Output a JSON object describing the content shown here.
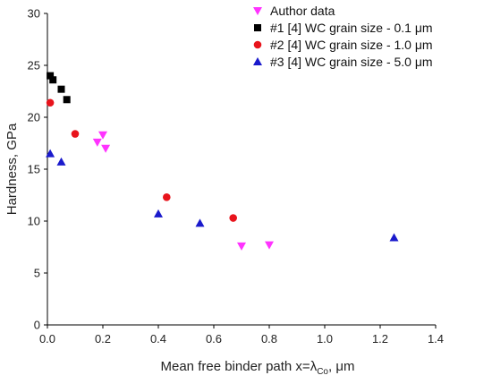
{
  "chart_data": {
    "type": "scatter",
    "title": "",
    "xlabel": {
      "prefix": "Mean free binder path x=λ",
      "sub": "Co",
      "suffix": ", μm"
    },
    "ylabel": "Hardness, GPa",
    "xlim": [
      0,
      1.4
    ],
    "ylim": [
      0,
      30
    ],
    "xticks": [
      0.0,
      0.2,
      0.4,
      0.6,
      0.8,
      1.0,
      1.2,
      1.4
    ],
    "xtick_labels": [
      "0.0",
      "0.2",
      "0.4",
      "0.6",
      "0.8",
      "1.0",
      "1.2",
      "1.4"
    ],
    "yticks": [
      0,
      5,
      10,
      15,
      20,
      25,
      30
    ],
    "ytick_labels": [
      "0",
      "5",
      "10",
      "15",
      "20",
      "25",
      "30"
    ],
    "grid": false,
    "legend_position": "top-right",
    "series": [
      {
        "name": "Author data",
        "marker": "triangle-down",
        "color": "#ff33ff",
        "points": [
          {
            "x": 0.18,
            "y": 17.6
          },
          {
            "x": 0.2,
            "y": 18.3
          },
          {
            "x": 0.21,
            "y": 17.0
          },
          {
            "x": 0.7,
            "y": 7.6
          },
          {
            "x": 0.8,
            "y": 7.7
          }
        ]
      },
      {
        "name": "#1 [4] WC grain size - 0.1 μm",
        "marker": "square",
        "color": "#000000",
        "points": [
          {
            "x": 0.01,
            "y": 24.0
          },
          {
            "x": 0.02,
            "y": 23.6
          },
          {
            "x": 0.05,
            "y": 22.7
          },
          {
            "x": 0.07,
            "y": 21.7
          }
        ]
      },
      {
        "name": "#2 [4] WC grain size - 1.0 μm",
        "marker": "circle",
        "color": "#e8141c",
        "points": [
          {
            "x": 0.01,
            "y": 21.4
          },
          {
            "x": 0.1,
            "y": 18.4
          },
          {
            "x": 0.43,
            "y": 12.3
          },
          {
            "x": 0.67,
            "y": 10.3
          }
        ]
      },
      {
        "name": "#3 [4] WC grain size - 5.0 μm",
        "marker": "triangle-up",
        "color": "#1a1acc",
        "points": [
          {
            "x": 0.01,
            "y": 16.5
          },
          {
            "x": 0.05,
            "y": 15.7
          },
          {
            "x": 0.4,
            "y": 10.7
          },
          {
            "x": 0.55,
            "y": 9.8
          },
          {
            "x": 1.25,
            "y": 8.4
          }
        ]
      }
    ]
  }
}
